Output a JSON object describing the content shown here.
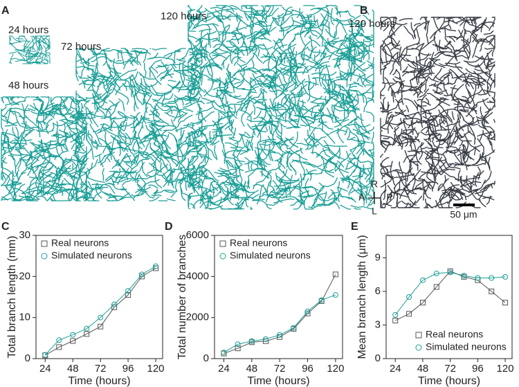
{
  "figure": {
    "panel_labels": [
      "A",
      "B",
      "C",
      "D",
      "E"
    ],
    "stage_labels": [
      "24 hours",
      "72 hours",
      "48 hours",
      "120 hours",
      "120 hours"
    ],
    "compass": [
      "R",
      "A",
      "P",
      "L"
    ],
    "scale_bar": "50 μm"
  },
  "chart_data": [
    {
      "type": "line",
      "ylabel": "Total branch length (mm)",
      "xlabel": "Time (hours)",
      "x": [
        24,
        36,
        48,
        60,
        72,
        84,
        96,
        108,
        120
      ],
      "xlim": [
        16,
        126
      ],
      "xticks": [
        24,
        48,
        72,
        96,
        120
      ],
      "ylim": [
        0,
        30
      ],
      "yticks": [
        0,
        10,
        20,
        30
      ],
      "legend": "upper left",
      "series": [
        {
          "name": "Real neurons",
          "color": "#555555",
          "marker": "square",
          "values": [
            0.8,
            2.8,
            4.3,
            6.0,
            7.8,
            12.5,
            15.5,
            20.0,
            22.0
          ]
        },
        {
          "name": "Simulated neurons",
          "color": "#1a9e96",
          "marker": "circle",
          "values": [
            0.9,
            4.5,
            5.8,
            7.3,
            10.0,
            13.2,
            16.5,
            20.5,
            22.5
          ]
        }
      ]
    },
    {
      "type": "line",
      "ylabel": "Total number of branches",
      "xlabel": "Time (hours)",
      "x": [
        24,
        36,
        48,
        60,
        72,
        84,
        96,
        108,
        120
      ],
      "xlim": [
        16,
        126
      ],
      "xticks": [
        24,
        48,
        72,
        96,
        120
      ],
      "ylim": [
        0,
        6000
      ],
      "yticks": [
        0,
        2000,
        4000,
        6000
      ],
      "legend": "upper left",
      "series": [
        {
          "name": "Real neurons",
          "color": "#555555",
          "marker": "square",
          "values": [
            250,
            500,
            800,
            850,
            1050,
            1450,
            2200,
            2800,
            4100
          ]
        },
        {
          "name": "Simulated neurons",
          "color": "#1a9e96",
          "marker": "circle",
          "values": [
            300,
            700,
            850,
            950,
            1150,
            1500,
            2300,
            2850,
            3100
          ]
        }
      ]
    },
    {
      "type": "line",
      "ylabel": "Mean branch length (μm)",
      "xlabel": "Time (hours)",
      "x": [
        24,
        36,
        48,
        60,
        72,
        84,
        96,
        108,
        120
      ],
      "xlim": [
        16,
        126
      ],
      "xticks": [
        24,
        48,
        72,
        96,
        120
      ],
      "ylim": [
        0,
        11
      ],
      "yticks": [
        0,
        3,
        6,
        9
      ],
      "legend": "lower right",
      "series": [
        {
          "name": "Real neurons",
          "color": "#555555",
          "marker": "square",
          "values": [
            3.4,
            4.0,
            5.0,
            6.4,
            7.8,
            7.3,
            7.0,
            6.0,
            5.0
          ]
        },
        {
          "name": "Simulated neurons",
          "color": "#1a9e96",
          "marker": "circle",
          "values": [
            3.9,
            5.5,
            7.0,
            7.6,
            7.7,
            7.4,
            7.2,
            7.2,
            7.3
          ]
        }
      ]
    }
  ]
}
